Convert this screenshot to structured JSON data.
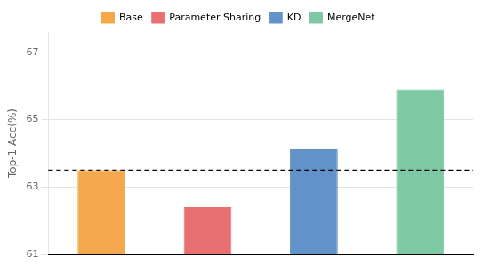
{
  "chart_data": {
    "type": "bar",
    "categories": [
      "Base",
      "Parameter Sharing",
      "KD",
      "MergeNet"
    ],
    "values": [
      63.5,
      62.4,
      64.15,
      65.9
    ],
    "colors": [
      "#F5A84B",
      "#E87070",
      "#6192C8",
      "#7EC8A4"
    ],
    "ylabel": "Top-1 Acc(%)",
    "ylim": [
      61,
      67.6
    ],
    "yticks": [
      61,
      63,
      65,
      67
    ],
    "reference_line": 63.5,
    "grid": true,
    "legend": "top",
    "tick_labels": "y"
  }
}
